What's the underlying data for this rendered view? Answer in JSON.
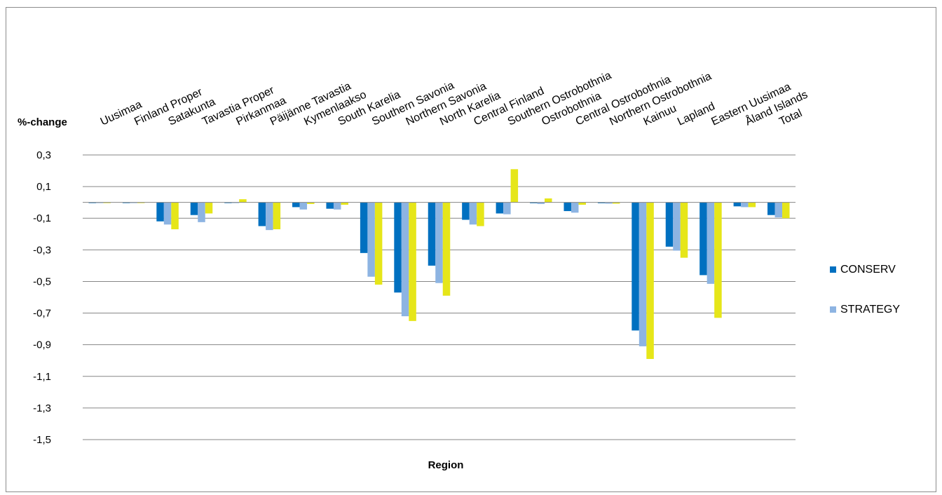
{
  "chart_data": {
    "type": "bar",
    "ylabel": "%-change",
    "xlabel": "Region",
    "ylim": [
      -1.5,
      0.3
    ],
    "yticks": [
      0.3,
      0.1,
      -0.1,
      -0.3,
      -0.5,
      -0.7,
      -0.9,
      -1.1,
      -1.3,
      -1.5
    ],
    "ytick_labels": [
      "0,3",
      "0,1",
      "-0,1",
      "-0,3",
      "-0,5",
      "-0,7",
      "-0,9",
      "-1,1",
      "-1,3",
      "-1,5"
    ],
    "grid": true,
    "legend_position": "right",
    "categories": [
      "Uusimaa",
      "Finland Proper",
      "Satakunta",
      "Tavastia Proper",
      "Pirkanmaa",
      "Päijänne Tavastia",
      "Kymenlaakso",
      "South Karelia",
      "Southern Savonia",
      "Northern Savonia",
      "North Karelia",
      "Central Finland",
      "Southern Ostrobothnia",
      "Ostrobothnia",
      "Central Ostrobothnia",
      "Northern Ostrobothnia",
      "Kainuu",
      "Lapland",
      "Eastern Uusimaa",
      "Åland Islands",
      "Total"
    ],
    "series": [
      {
        "name": "CONSERV",
        "color": "#0070c0",
        "values": [
          -0.003,
          -0.003,
          -0.12,
          -0.08,
          -0.003,
          -0.15,
          -0.03,
          -0.04,
          -0.32,
          -0.57,
          -0.4,
          -0.11,
          -0.07,
          -0.005,
          -0.055,
          -0.005,
          -0.81,
          -0.28,
          -0.46,
          -0.025,
          -0.08
        ]
      },
      {
        "name": "STRATEGY",
        "color": "#8db4e2",
        "values": [
          -0.003,
          -0.003,
          -0.14,
          -0.125,
          -0.003,
          -0.175,
          -0.045,
          -0.045,
          -0.47,
          -0.72,
          -0.51,
          -0.14,
          -0.075,
          -0.01,
          -0.065,
          -0.008,
          -0.91,
          -0.305,
          -0.515,
          -0.03,
          -0.095
        ]
      },
      {
        "name": "",
        "color": "#e6e619",
        "values": [
          -0.003,
          -0.003,
          -0.17,
          -0.07,
          0.02,
          -0.17,
          -0.01,
          -0.015,
          -0.52,
          -0.75,
          -0.59,
          -0.15,
          0.21,
          0.025,
          -0.015,
          -0.008,
          -0.99,
          -0.35,
          -0.73,
          -0.03,
          -0.1
        ]
      }
    ]
  }
}
